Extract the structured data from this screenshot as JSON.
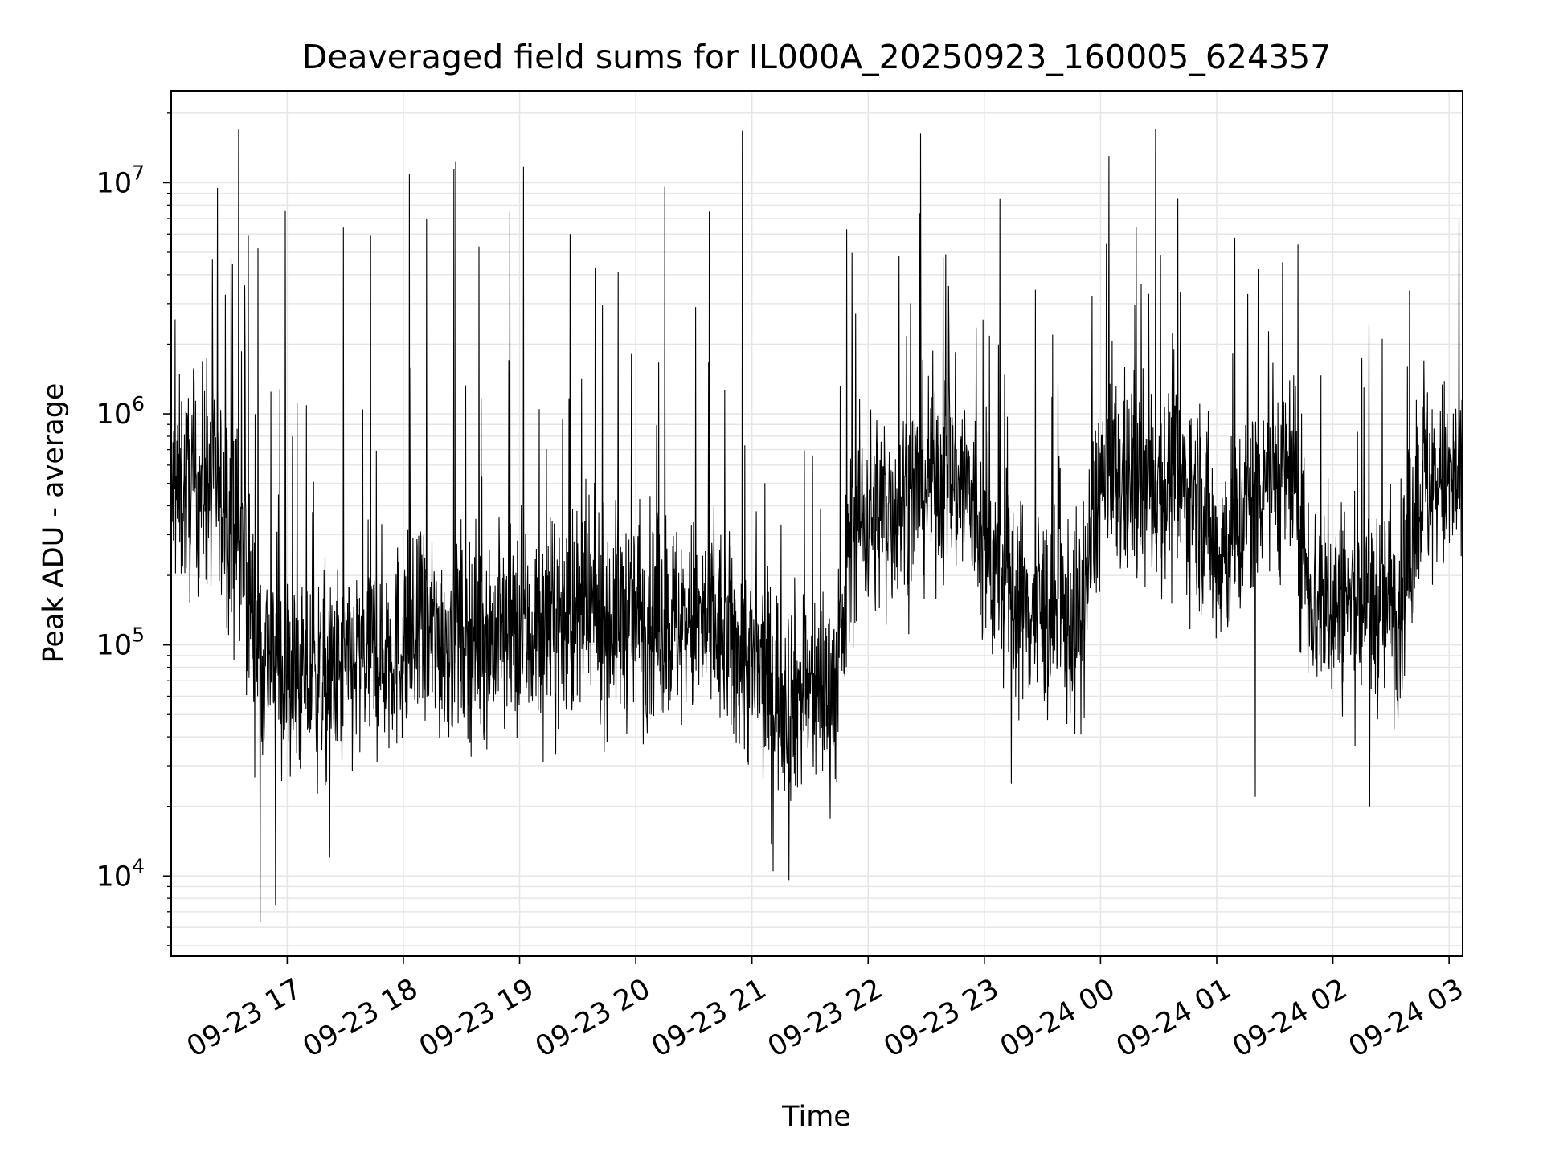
{
  "chart_data": {
    "type": "line",
    "title": "Deaveraged field sums for IL000A_20250923_160005_624357",
    "xlabel": "Time",
    "ylabel": "Peak ADU - average",
    "yscale": "log",
    "ylim": [
      4500,
      25000000
    ],
    "xlim": [
      "2025-09-23 16:00:05",
      "2025-09-24 03:07:00"
    ],
    "grid": true,
    "line_color": "#000000",
    "grid_color": "#e6e6e6",
    "x_ticks": [
      {
        "value": "2025-09-23 17:00",
        "label": "09-23 17"
      },
      {
        "value": "2025-09-23 18:00",
        "label": "09-23 18"
      },
      {
        "value": "2025-09-23 19:00",
        "label": "09-23 19"
      },
      {
        "value": "2025-09-23 20:00",
        "label": "09-23 20"
      },
      {
        "value": "2025-09-23 21:00",
        "label": "09-23 21"
      },
      {
        "value": "2025-09-23 22:00",
        "label": "09-23 22"
      },
      {
        "value": "2025-09-23 23:00",
        "label": "09-23 23"
      },
      {
        "value": "2025-09-24 00:00",
        "label": "09-24 00"
      },
      {
        "value": "2025-09-24 01:00",
        "label": "09-24 01"
      },
      {
        "value": "2025-09-24 02:00",
        "label": "09-24 02"
      },
      {
        "value": "2025-09-24 03:00",
        "label": "09-24 03"
      }
    ],
    "y_ticks": [
      {
        "value": 10000,
        "base": "10",
        "exp": "4"
      },
      {
        "value": 100000,
        "base": "10",
        "exp": "5"
      },
      {
        "value": 1000000,
        "base": "10",
        "exp": "6"
      },
      {
        "value": 10000000,
        "base": "10",
        "exp": "7"
      }
    ],
    "series": [
      {
        "baseline": [
          [
            "2025-09-23 16:00",
            450000
          ],
          [
            "2025-09-23 16:20",
            500000
          ],
          [
            "2025-09-23 16:35",
            300000
          ],
          [
            "2025-09-23 16:45",
            100000
          ],
          [
            "2025-09-23 17:00",
            70000
          ],
          [
            "2025-09-23 17:20",
            70000
          ],
          [
            "2025-09-23 17:45",
            90000
          ],
          [
            "2025-09-23 18:15",
            110000
          ],
          [
            "2025-09-23 19:00",
            110000
          ],
          [
            "2025-09-23 19:30",
            130000
          ],
          [
            "2025-09-23 20:00",
            130000
          ],
          [
            "2025-09-23 20:40",
            120000
          ],
          [
            "2025-09-23 21:00",
            80000
          ],
          [
            "2025-09-23 21:20",
            60000
          ],
          [
            "2025-09-23 21:45",
            70000
          ],
          [
            "2025-09-23 21:52",
            350000
          ],
          [
            "2025-09-23 22:15",
            400000
          ],
          [
            "2025-09-23 22:35",
            550000
          ],
          [
            "2025-09-23 22:50",
            500000
          ],
          [
            "2025-09-23 23:00",
            250000
          ],
          [
            "2025-09-23 23:20",
            150000
          ],
          [
            "2025-09-23 23:50",
            120000
          ],
          [
            "2025-09-23 23:59",
            500000
          ],
          [
            "2025-09-24 00:30",
            500000
          ],
          [
            "2025-09-24 00:50",
            450000
          ],
          [
            "2025-09-24 01:00",
            250000
          ],
          [
            "2025-09-24 01:10",
            300000
          ],
          [
            "2025-09-24 01:25",
            600000
          ],
          [
            "2025-09-24 01:40",
            500000
          ],
          [
            "2025-09-24 01:50",
            150000
          ],
          [
            "2025-09-24 02:15",
            150000
          ],
          [
            "2025-09-24 02:35",
            150000
          ],
          [
            "2025-09-24 02:45",
            500000
          ],
          [
            "2025-09-24 03:07",
            500000
          ]
        ],
        "spikes": [
          [
            "2025-09-23 16:24",
            9500000
          ],
          [
            "2025-09-23 16:31",
            4700000
          ],
          [
            "2025-09-23 16:35",
            17000000
          ],
          [
            "2025-09-23 16:38",
            3600000
          ],
          [
            "2025-09-23 16:40",
            5900000
          ],
          [
            "2025-09-23 16:45",
            5200000
          ],
          [
            "2025-09-23 16:59",
            7600000
          ],
          [
            "2025-09-23 17:29",
            6400000
          ],
          [
            "2025-09-23 17:43",
            5900000
          ],
          [
            "2025-09-23 18:03",
            10900000
          ],
          [
            "2025-09-23 18:12",
            7000000
          ],
          [
            "2025-09-23 18:26",
            11500000
          ],
          [
            "2025-09-23 18:27",
            12300000
          ],
          [
            "2025-09-23 18:39",
            5300000
          ],
          [
            "2025-09-23 18:55",
            7500000
          ],
          [
            "2025-09-23 19:02",
            11700000
          ],
          [
            "2025-09-23 19:26",
            6000000
          ],
          [
            "2025-09-23 19:39",
            4300000
          ],
          [
            "2025-09-23 19:51",
            4100000
          ],
          [
            "2025-09-23 20:15",
            9600000
          ],
          [
            "2025-09-23 20:31",
            2900000
          ],
          [
            "2025-09-23 20:38",
            7500000
          ],
          [
            "2025-09-23 20:55",
            16800000
          ],
          [
            "2025-09-23 21:49",
            6300000
          ],
          [
            "2025-09-23 22:27",
            16300000
          ],
          [
            "2025-09-23 22:40",
            4900000
          ],
          [
            "2025-09-23 23:08",
            8500000
          ],
          [
            "2025-09-24 01:16",
            3300000
          ],
          [
            "2025-09-24 02:16",
            1300000
          ],
          [
            "2025-09-24 02:47",
            1700000
          ]
        ],
        "dips": [
          [
            "2025-09-23 16:46",
            6300
          ],
          [
            "2025-09-23 16:54",
            7500
          ],
          [
            "2025-09-23 17:22",
            12000
          ],
          [
            "2025-09-23 21:11",
            10500
          ],
          [
            "2025-09-23 21:19",
            9600
          ],
          [
            "2025-09-23 23:14",
            25000
          ],
          [
            "2025-09-24 01:20",
            22000
          ],
          [
            "2025-09-24 02:19",
            20000
          ]
        ]
      }
    ]
  }
}
